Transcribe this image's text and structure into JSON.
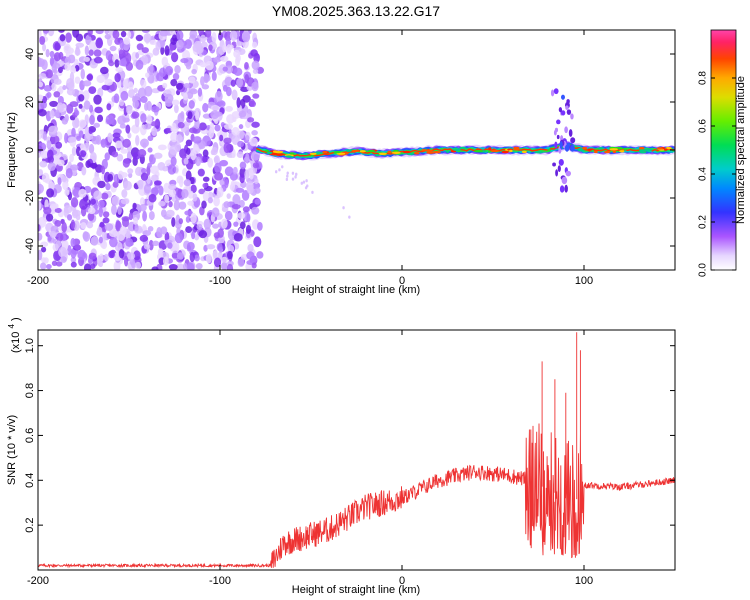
{
  "title": "YM08.2025.363.13.22.G17",
  "chart_data": [
    {
      "type": "heatmap",
      "xlabel": "Height of straight line (km)",
      "ylabel": "Frequency (Hz)",
      "xlim": [
        -200,
        150
      ],
      "ylim": [
        -50,
        50
      ],
      "xticks": [
        -200,
        -100,
        0,
        100
      ],
      "xtick_labels": [
        "-200",
        "-100",
        "0",
        "100"
      ],
      "yticks": [
        -40,
        -20,
        0,
        20,
        40
      ],
      "ytick_labels": [
        "-40",
        "-20",
        "0",
        "20",
        "40"
      ],
      "noise_region_x": [
        -200,
        -78
      ],
      "ridge": {
        "x_start": -80,
        "x_end": 150,
        "points": [
          {
            "x": -80,
            "y": 0.5
          },
          {
            "x": -70,
            "y": -1.5
          },
          {
            "x": -55,
            "y": -2.5
          },
          {
            "x": -40,
            "y": -1.5
          },
          {
            "x": -25,
            "y": -0.5
          },
          {
            "x": -10,
            "y": -1.5
          },
          {
            "x": 0,
            "y": -1
          },
          {
            "x": 20,
            "y": 0
          },
          {
            "x": 60,
            "y": 0
          },
          {
            "x": 80,
            "y": 0
          },
          {
            "x": 90,
            "y": 2
          },
          {
            "x": 100,
            "y": 0
          },
          {
            "x": 150,
            "y": 0
          }
        ]
      },
      "colorbar": {
        "label": "Normalized spectral amplitude",
        "ticks": [
          0.0,
          0.2,
          0.4,
          0.6,
          0.8
        ],
        "tick_labels": [
          "0.0",
          "0.2",
          "0.4",
          "0.6",
          "0.8"
        ],
        "range": [
          0,
          1
        ]
      }
    },
    {
      "type": "line",
      "xlabel": "Height of straight line (km)",
      "ylabel": "SNR (10 * v/v)",
      "scale_label": "(x10",
      "scale_exp": "4",
      "scale_close": ")",
      "xlim": [
        -200,
        150
      ],
      "ylim": [
        0,
        1.07
      ],
      "xticks": [
        -200,
        -100,
        0,
        100
      ],
      "xtick_labels": [
        "-200",
        "-100",
        "0",
        "100"
      ],
      "yticks": [
        0.2,
        0.4,
        0.6,
        0.8,
        1.0
      ],
      "ytick_labels": [
        "0.2",
        "0.4",
        "0.6",
        "0.8",
        "1.0"
      ],
      "line_color": "#ee3333",
      "trend": [
        {
          "x": -200,
          "y": 0.02
        },
        {
          "x": -72,
          "y": 0.02
        },
        {
          "x": -65,
          "y": 0.12
        },
        {
          "x": -40,
          "y": 0.18
        },
        {
          "x": -20,
          "y": 0.28
        },
        {
          "x": 0,
          "y": 0.32
        },
        {
          "x": 20,
          "y": 0.4
        },
        {
          "x": 40,
          "y": 0.44
        },
        {
          "x": 60,
          "y": 0.42
        },
        {
          "x": 70,
          "y": 0.4
        },
        {
          "x": 95,
          "y": 0.3
        },
        {
          "x": 100,
          "y": 0.38
        },
        {
          "x": 120,
          "y": 0.37
        },
        {
          "x": 150,
          "y": 0.4
        }
      ],
      "spikes": [
        {
          "x": 77,
          "y": 0.93
        },
        {
          "x": 84,
          "y": 0.85
        },
        {
          "x": 90,
          "y": 0.79
        },
        {
          "x": 96,
          "y": 1.06
        },
        {
          "x": 98,
          "y": 0.98
        }
      ]
    }
  ]
}
